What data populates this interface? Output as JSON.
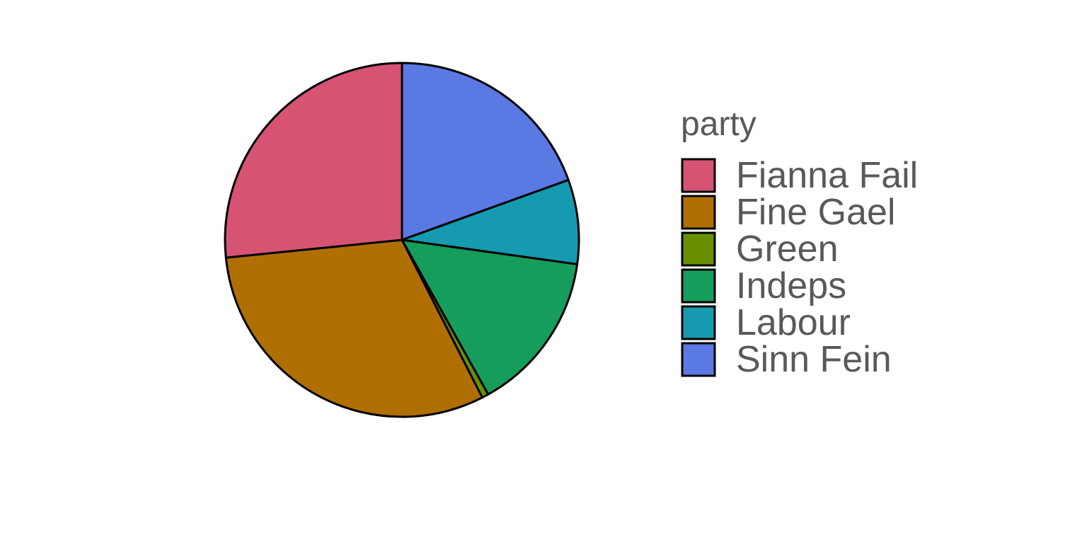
{
  "chart_data": {
    "type": "pie",
    "legend_title": "party",
    "legend_position": "right",
    "slices": [
      {
        "label": "Sinn Fein",
        "value": 19.5,
        "color": "#5B79E3"
      },
      {
        "label": "Labour",
        "value": 7.7,
        "color": "#159AB0"
      },
      {
        "label": "Indeps",
        "value": 14.7,
        "color": "#169D5C"
      },
      {
        "label": "Green",
        "value": 0.6,
        "color": "#698F00"
      },
      {
        "label": "Fine Gael",
        "value": 30.9,
        "color": "#B06F03"
      },
      {
        "label": "Fianna Fail",
        "value": 26.6,
        "color": "#D75374"
      }
    ],
    "legend_order": [
      "Fianna Fail",
      "Fine Gael",
      "Green",
      "Indeps",
      "Labour",
      "Sinn Fein"
    ]
  }
}
